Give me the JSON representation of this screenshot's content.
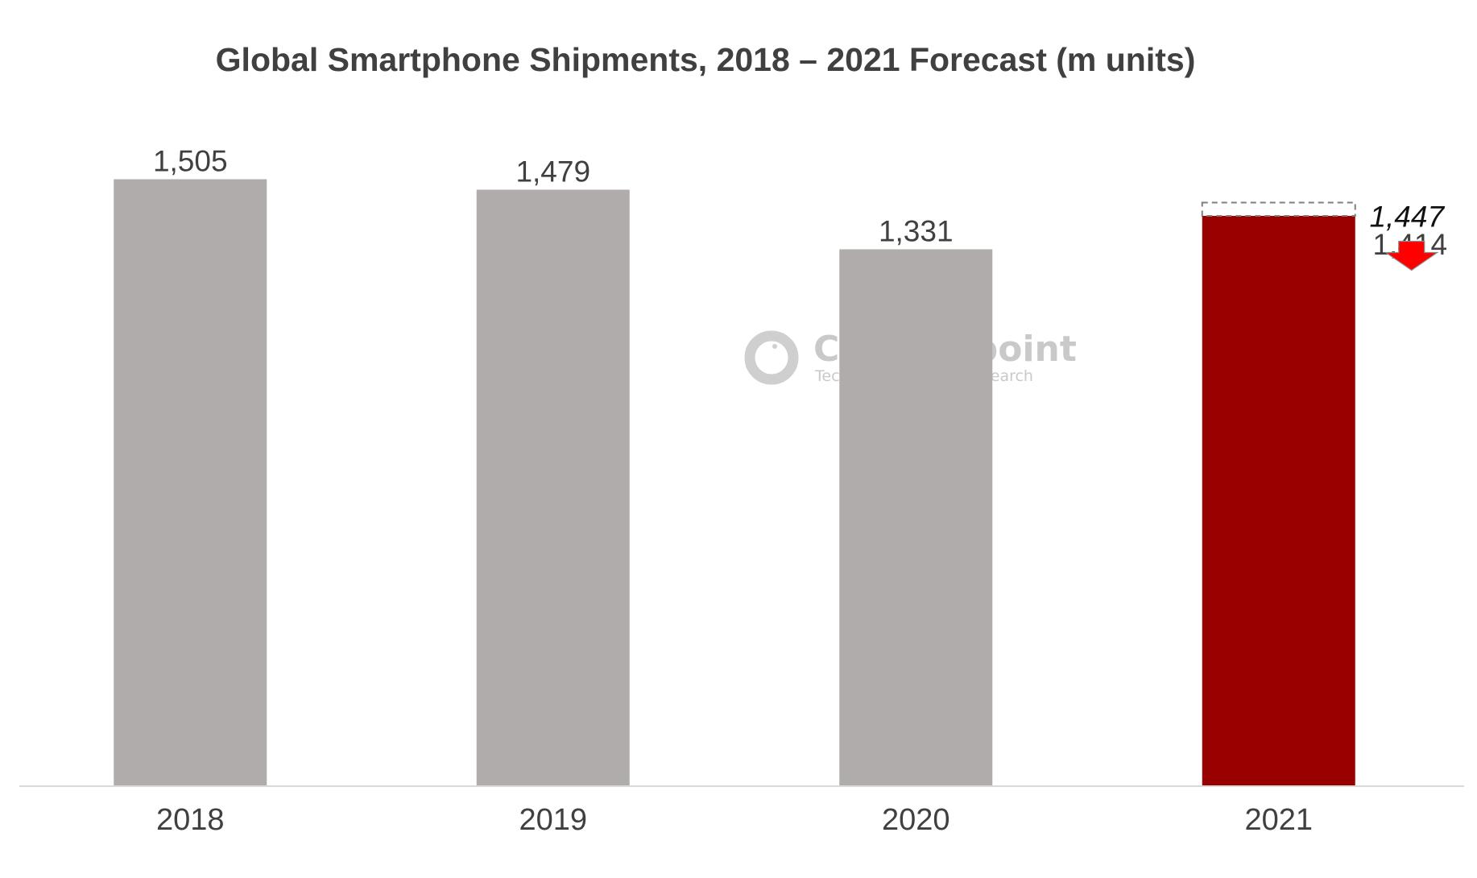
{
  "chart_data": {
    "type": "bar",
    "title": "Global Smartphone Shipments, 2018 – 2021 Forecast (m units)",
    "xlabel": "",
    "ylabel": "",
    "ylim": [
      0,
      1600
    ],
    "grid": false,
    "legend": "none",
    "categories": [
      "2018",
      "2019",
      "2020",
      "2021"
    ],
    "values": [
      1505,
      1479,
      1331,
      1414
    ],
    "labels": [
      "1,505",
      "1,479",
      "1,331",
      "1,414"
    ],
    "highlight_index": 3,
    "previous_forecast": {
      "category": "2021",
      "value": 1447,
      "label": "1,447",
      "style": "dashed outline, italic label",
      "change_indicator": "down-arrow-icon"
    },
    "colors": {
      "bar": "#b0acab",
      "highlight": "#990000",
      "arrow": "#ff0000",
      "arrow_stroke": "#8c8c8c",
      "text": "#404040",
      "axis": "#d9d9d9",
      "dashed_outline": "#7f7f7f"
    }
  },
  "watermark": {
    "name": "Counterpoint",
    "tagline": "Technology Market Research",
    "icon": "counterpoint-logo-icon"
  }
}
